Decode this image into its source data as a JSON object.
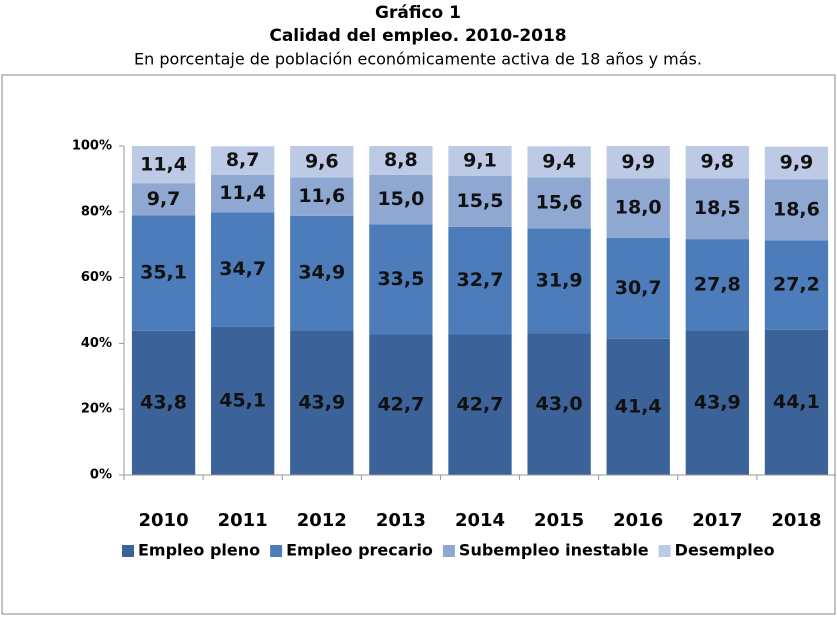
{
  "chart_data": {
    "type": "stacked_bar",
    "title": "Gráfico 1",
    "subtitle": "Calidad del empleo. 2010-2018",
    "caption": "En porcentaje de población económicamente activa de 18 años y más.",
    "categories": [
      "2010",
      "2011",
      "2012",
      "2013",
      "2014",
      "2015",
      "2016",
      "2017",
      "2018"
    ],
    "series": [
      {
        "name": "Empleo pleno",
        "color": "#3b6299",
        "values": [
          43.8,
          45.1,
          43.9,
          42.7,
          42.7,
          43.0,
          41.4,
          43.9,
          44.1
        ],
        "value_labels": [
          "43,8",
          "45,1",
          "43,9",
          "42,7",
          "42,7",
          "43,0",
          "41,4",
          "43,9",
          "44,1"
        ]
      },
      {
        "name": "Empleo precario",
        "color": "#4c7cba",
        "values": [
          35.1,
          34.7,
          34.9,
          33.5,
          32.7,
          31.9,
          30.7,
          27.8,
          27.2
        ],
        "value_labels": [
          "35,1",
          "34,7",
          "34,9",
          "33,5",
          "32,7",
          "31,9",
          "30,7",
          "27,8",
          "27,2"
        ]
      },
      {
        "name": "Subempleo inestable",
        "color": "#8ea8d2",
        "values": [
          9.7,
          11.4,
          11.6,
          15.0,
          15.5,
          15.6,
          18.0,
          18.5,
          18.6
        ],
        "value_labels": [
          "9,7",
          "11,4",
          "11,6",
          "15,0",
          "15,5",
          "15,6",
          "18,0",
          "18,5",
          "18,6"
        ]
      },
      {
        "name": "Desempleo",
        "color": "#bccae6",
        "values": [
          11.4,
          8.7,
          9.6,
          8.8,
          9.1,
          9.4,
          9.9,
          9.8,
          9.9
        ],
        "value_labels": [
          "11,4",
          "8,7",
          "9,6",
          "8,8",
          "9,1",
          "9,4",
          "9,9",
          "9,8",
          "9,9"
        ]
      }
    ],
    "ylim": [
      0,
      100
    ],
    "yticks": [
      {
        "value": 0,
        "label": "0%"
      },
      {
        "value": 20,
        "label": "20%"
      },
      {
        "value": 40,
        "label": "40%"
      },
      {
        "value": 60,
        "label": "60%"
      },
      {
        "value": 80,
        "label": "80%"
      },
      {
        "value": 100,
        "label": "100%"
      }
    ],
    "legend": "bottom"
  }
}
